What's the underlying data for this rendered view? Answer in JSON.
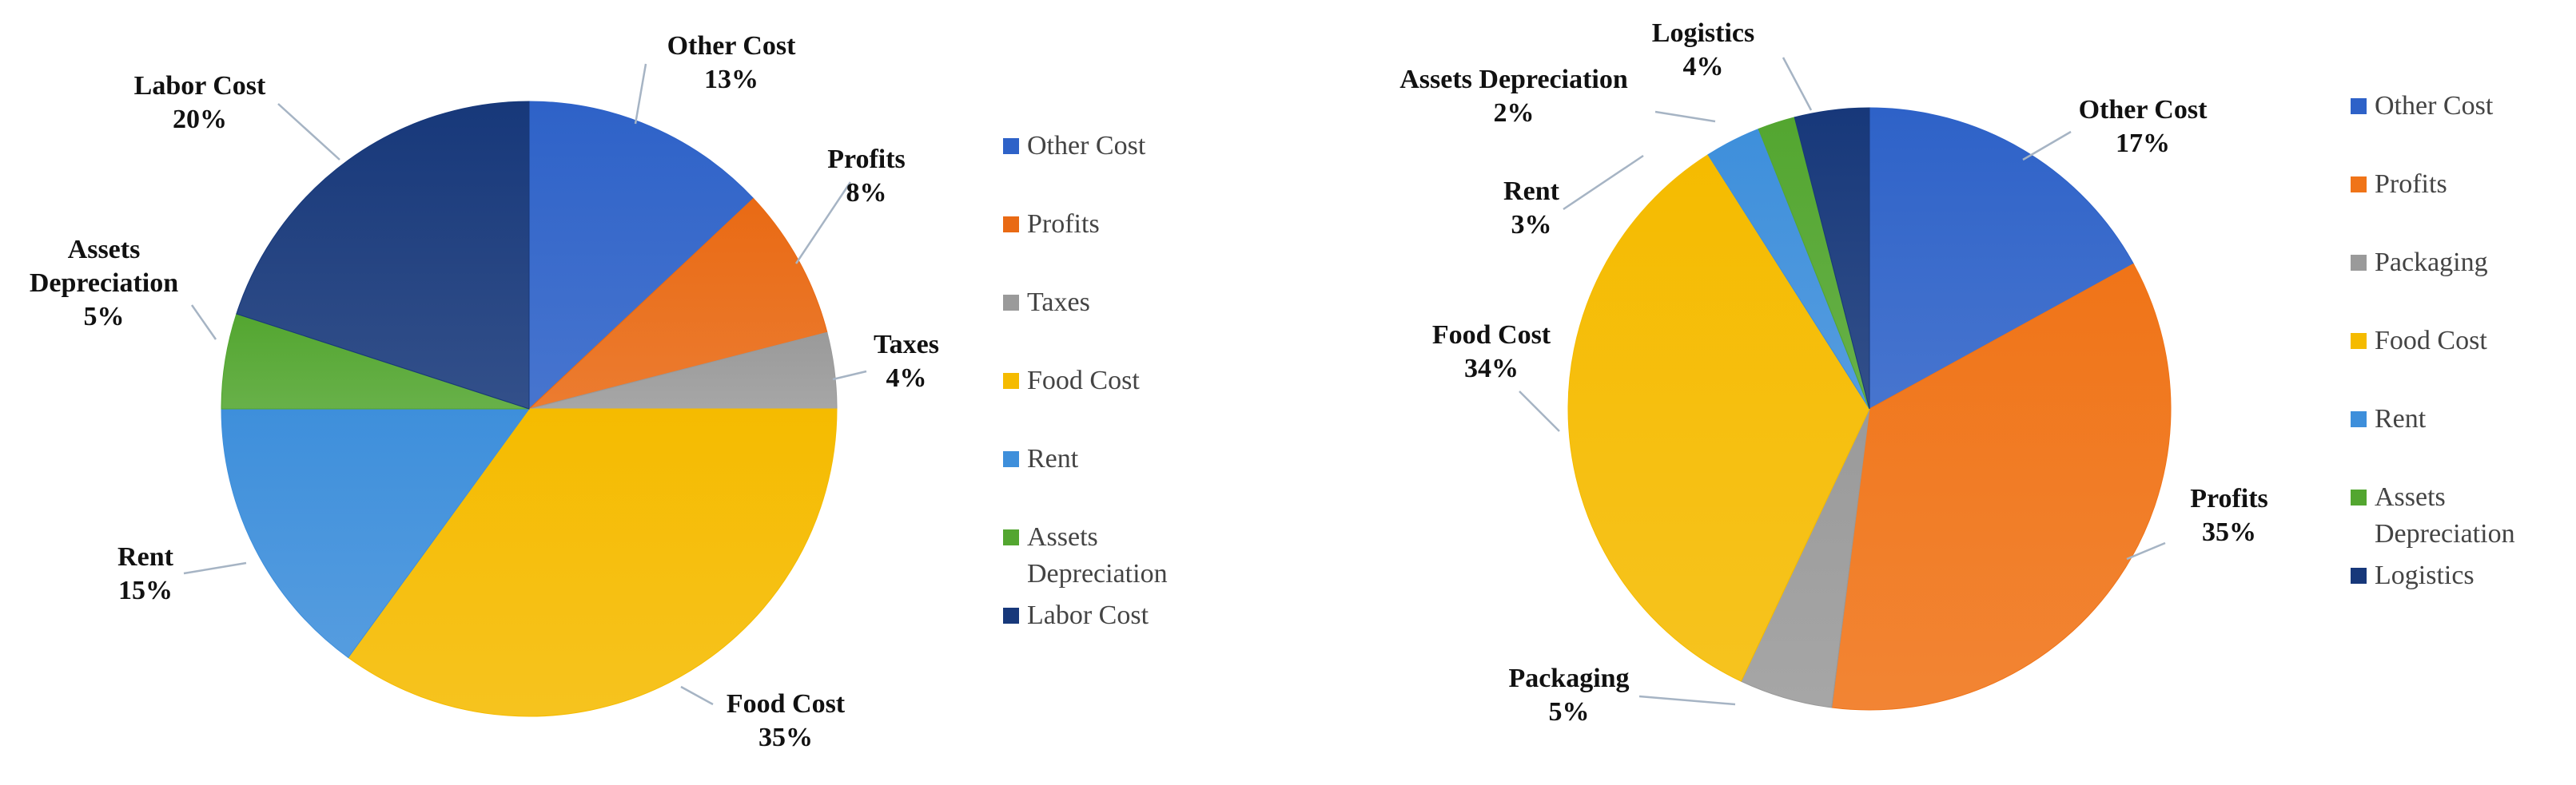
{
  "chart_data": [
    {
      "type": "pie",
      "title": "",
      "slices": [
        {
          "label": "Other Cost",
          "value": 13,
          "value_label": "13%",
          "color": "#2e62c8"
        },
        {
          "label": "Profits",
          "value": 8,
          "value_label": "8%",
          "color": "#e96a14"
        },
        {
          "label": "Taxes",
          "value": 4,
          "value_label": "4%",
          "color": "#9a9a9a"
        },
        {
          "label": "Food Cost",
          "value": 35,
          "value_label": "35%",
          "color": "#f5bb00"
        },
        {
          "label": "Rent",
          "value": 15,
          "value_label": "15%",
          "color": "#3e8fdb"
        },
        {
          "label": "Assets Depreciation",
          "value": 5,
          "value_label": "5%",
          "color": "#53a630"
        },
        {
          "label": "Labor Cost",
          "value": 20,
          "value_label": "20%",
          "color": "#17387a"
        }
      ],
      "legend": [
        "Other Cost",
        "Profits",
        "Taxes",
        "Food Cost",
        "Rent",
        "Assets Depreciation",
        "Labor Cost"
      ],
      "legend_position": "right"
    },
    {
      "type": "pie",
      "title": "",
      "slices": [
        {
          "label": "Other Cost",
          "value": 17,
          "value_label": "17%",
          "color": "#2e62c8"
        },
        {
          "label": "Profits",
          "value": 35,
          "value_label": "35%",
          "color": "#f07418"
        },
        {
          "label": "Packaging",
          "value": 5,
          "value_label": "5%",
          "color": "#9a9a9a"
        },
        {
          "label": "Food Cost",
          "value": 34,
          "value_label": "34%",
          "color": "#f5bb00"
        },
        {
          "label": "Rent",
          "value": 3,
          "value_label": "3%",
          "color": "#3e8fdb"
        },
        {
          "label": "Assets Depreciation",
          "value": 2,
          "value_label": "2%",
          "color": "#53a630"
        },
        {
          "label": "Logistics",
          "value": 4,
          "value_label": "4%",
          "color": "#17387a"
        }
      ],
      "legend": [
        "Other Cost",
        "Profits",
        "Packaging",
        "Food Cost",
        "Rent",
        "Assets Depreciation",
        "Logistics"
      ],
      "legend_position": "right"
    }
  ]
}
